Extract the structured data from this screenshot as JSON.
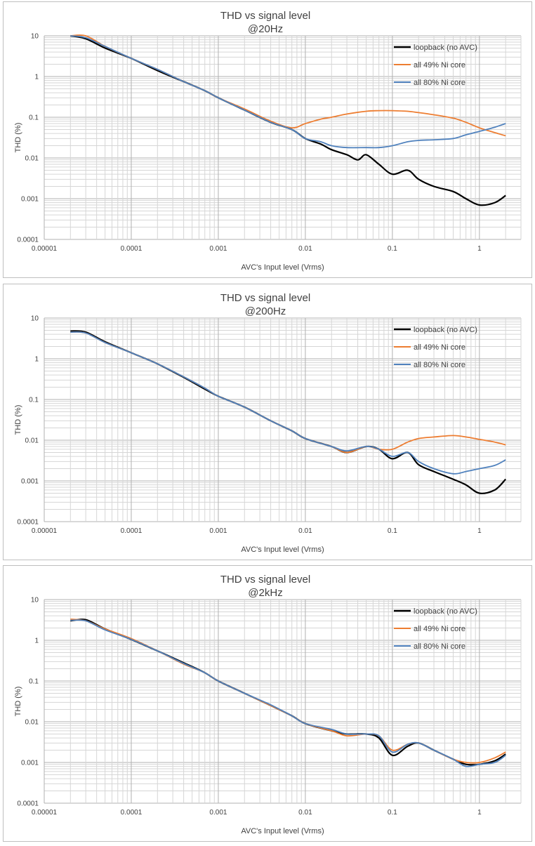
{
  "chart_data": [
    {
      "type": "line",
      "title": "THD vs signal level",
      "subtitle": "@20Hz",
      "xlabel": "AVC's Input level (Vrms)",
      "ylabel": "THD (%)",
      "xscale": "log",
      "yscale": "log",
      "xlim": [
        1e-05,
        3
      ],
      "ylim": [
        0.0001,
        10
      ],
      "xticks": [
        "0.00001",
        "0.0001",
        "0.001",
        "0.01",
        "0.1",
        "1"
      ],
      "yticks": [
        "0.0001",
        "0.001",
        "0.01",
        "0.1",
        "1",
        "10"
      ],
      "grid": true,
      "legend_position": "top-right",
      "series": [
        {
          "name": "loopback (no AVC)",
          "color": "#000000",
          "x": [
            2e-05,
            3e-05,
            5e-05,
            0.0001,
            0.0002,
            0.0004,
            0.0007,
            0.001,
            0.002,
            0.004,
            0.007,
            0.01,
            0.015,
            0.02,
            0.03,
            0.04,
            0.05,
            0.07,
            0.1,
            0.15,
            0.2,
            0.3,
            0.5,
            0.7,
            1,
            1.5,
            2
          ],
          "y": [
            10,
            8.5,
            5,
            2.8,
            1.4,
            0.75,
            0.45,
            0.3,
            0.15,
            0.075,
            0.05,
            0.03,
            0.022,
            0.016,
            0.012,
            0.009,
            0.012,
            0.007,
            0.004,
            0.005,
            0.003,
            0.002,
            0.0015,
            0.001,
            0.0007,
            0.0008,
            0.0012
          ]
        },
        {
          "name": "all 49% Ni core",
          "color": "#ed7d31",
          "x": [
            2e-05,
            3e-05,
            5e-05,
            0.0001,
            0.0002,
            0.0004,
            0.0007,
            0.001,
            0.002,
            0.004,
            0.007,
            0.01,
            0.015,
            0.02,
            0.03,
            0.05,
            0.07,
            0.1,
            0.15,
            0.2,
            0.3,
            0.5,
            0.7,
            1,
            1.5,
            2
          ],
          "y": [
            10,
            10,
            5.5,
            2.8,
            1.5,
            0.75,
            0.45,
            0.3,
            0.16,
            0.08,
            0.055,
            0.07,
            0.09,
            0.1,
            0.12,
            0.14,
            0.145,
            0.145,
            0.14,
            0.13,
            0.115,
            0.095,
            0.075,
            0.055,
            0.042,
            0.035
          ]
        },
        {
          "name": "all 80% Ni core",
          "color": "#4f81bd",
          "x": [
            2e-05,
            3e-05,
            5e-05,
            0.0001,
            0.0002,
            0.0004,
            0.0007,
            0.001,
            0.002,
            0.004,
            0.007,
            0.01,
            0.015,
            0.02,
            0.03,
            0.05,
            0.07,
            0.1,
            0.15,
            0.2,
            0.3,
            0.5,
            0.7,
            1,
            1.5,
            2
          ],
          "y": [
            10,
            9,
            5.5,
            2.8,
            1.5,
            0.75,
            0.45,
            0.3,
            0.15,
            0.075,
            0.05,
            0.03,
            0.025,
            0.02,
            0.018,
            0.018,
            0.018,
            0.02,
            0.025,
            0.027,
            0.028,
            0.03,
            0.037,
            0.045,
            0.057,
            0.07
          ]
        }
      ]
    },
    {
      "type": "line",
      "title": "THD vs signal level",
      "subtitle": "@200Hz",
      "xlabel": "AVC's Input level (Vrms)",
      "ylabel": "THD (%)",
      "xscale": "log",
      "yscale": "log",
      "xlim": [
        1e-05,
        3
      ],
      "ylim": [
        0.0001,
        10
      ],
      "xticks": [
        "0.00001",
        "0.0001",
        "0.001",
        "0.01",
        "0.1",
        "1"
      ],
      "yticks": [
        "0.0001",
        "0.001",
        "0.01",
        "0.1",
        "1",
        "10"
      ],
      "grid": true,
      "legend_position": "top-right",
      "series": [
        {
          "name": "loopback (no AVC)",
          "color": "#000000",
          "x": [
            2e-05,
            3e-05,
            5e-05,
            0.0001,
            0.0002,
            0.0004,
            0.0007,
            0.001,
            0.002,
            0.004,
            0.007,
            0.01,
            0.02,
            0.03,
            0.05,
            0.07,
            0.1,
            0.15,
            0.2,
            0.3,
            0.5,
            0.7,
            1,
            1.5,
            2
          ],
          "y": [
            4.8,
            4.5,
            2.6,
            1.4,
            0.75,
            0.35,
            0.18,
            0.12,
            0.065,
            0.03,
            0.017,
            0.011,
            0.007,
            0.005,
            0.007,
            0.006,
            0.0035,
            0.005,
            0.0025,
            0.0017,
            0.0011,
            0.0008,
            0.0005,
            0.0006,
            0.0011
          ]
        },
        {
          "name": "all 49% Ni core",
          "color": "#ed7d31",
          "x": [
            2e-05,
            3e-05,
            5e-05,
            0.0001,
            0.0002,
            0.0004,
            0.0007,
            0.001,
            0.002,
            0.004,
            0.007,
            0.01,
            0.02,
            0.03,
            0.05,
            0.07,
            0.1,
            0.15,
            0.2,
            0.3,
            0.5,
            0.7,
            1,
            1.5,
            2
          ],
          "y": [
            4.5,
            4.3,
            2.5,
            1.4,
            0.75,
            0.36,
            0.19,
            0.12,
            0.065,
            0.03,
            0.017,
            0.011,
            0.007,
            0.005,
            0.007,
            0.006,
            0.006,
            0.009,
            0.011,
            0.012,
            0.013,
            0.012,
            0.0105,
            0.009,
            0.0077
          ]
        },
        {
          "name": "all 80% Ni core",
          "color": "#4f81bd",
          "x": [
            2e-05,
            3e-05,
            5e-05,
            0.0001,
            0.0002,
            0.0004,
            0.0007,
            0.001,
            0.002,
            0.004,
            0.007,
            0.01,
            0.02,
            0.03,
            0.05,
            0.07,
            0.1,
            0.15,
            0.2,
            0.3,
            0.5,
            0.7,
            1,
            1.5,
            2
          ],
          "y": [
            4.5,
            4.3,
            2.5,
            1.4,
            0.75,
            0.36,
            0.19,
            0.12,
            0.065,
            0.03,
            0.017,
            0.011,
            0.007,
            0.0055,
            0.007,
            0.006,
            0.004,
            0.005,
            0.003,
            0.002,
            0.0015,
            0.0017,
            0.002,
            0.0024,
            0.0033
          ]
        }
      ]
    },
    {
      "type": "line",
      "title": "THD vs signal level",
      "subtitle": "@2kHz",
      "xlabel": "AVC's Input level (Vrms)",
      "ylabel": "THD (%)",
      "xscale": "log",
      "yscale": "log",
      "xlim": [
        1e-05,
        3
      ],
      "ylim": [
        0.0001,
        10
      ],
      "xticks": [
        "0.00001",
        "0.0001",
        "0.001",
        "0.01",
        "0.1",
        "1"
      ],
      "yticks": [
        "0.0001",
        "0.001",
        "0.01",
        "0.1",
        "1",
        "10"
      ],
      "grid": true,
      "legend_position": "top-right",
      "series": [
        {
          "name": "loopback (no AVC)",
          "color": "#000000",
          "x": [
            2e-05,
            3e-05,
            5e-05,
            0.0001,
            0.0002,
            0.0004,
            0.0007,
            0.001,
            0.002,
            0.004,
            0.007,
            0.01,
            0.02,
            0.03,
            0.05,
            0.07,
            0.1,
            0.15,
            0.2,
            0.3,
            0.5,
            0.7,
            1,
            1.5,
            2
          ],
          "y": [
            3,
            3.2,
            1.9,
            1.05,
            0.55,
            0.28,
            0.16,
            0.1,
            0.05,
            0.025,
            0.014,
            0.009,
            0.006,
            0.005,
            0.005,
            0.004,
            0.0015,
            0.0025,
            0.003,
            0.002,
            0.0012,
            0.0009,
            0.0009,
            0.0011,
            0.0016
          ]
        },
        {
          "name": "all 49% Ni core",
          "color": "#ed7d31",
          "x": [
            2e-05,
            3e-05,
            5e-05,
            0.0001,
            0.0002,
            0.0004,
            0.0007,
            0.001,
            0.002,
            0.004,
            0.007,
            0.01,
            0.02,
            0.03,
            0.05,
            0.07,
            0.1,
            0.15,
            0.2,
            0.3,
            0.5,
            0.7,
            1,
            1.5,
            2
          ],
          "y": [
            3.3,
            3,
            1.9,
            1.1,
            0.55,
            0.26,
            0.16,
            0.1,
            0.05,
            0.025,
            0.014,
            0.009,
            0.006,
            0.0045,
            0.005,
            0.0045,
            0.002,
            0.0028,
            0.003,
            0.002,
            0.0012,
            0.001,
            0.001,
            0.0013,
            0.0018
          ]
        },
        {
          "name": "all 80% Ni core",
          "color": "#4f81bd",
          "x": [
            2e-05,
            3e-05,
            5e-05,
            0.0001,
            0.0002,
            0.0004,
            0.0007,
            0.001,
            0.002,
            0.004,
            0.007,
            0.01,
            0.02,
            0.03,
            0.05,
            0.07,
            0.1,
            0.15,
            0.2,
            0.3,
            0.5,
            0.7,
            1,
            1.5,
            2
          ],
          "y": [
            3.1,
            3,
            1.8,
            1.05,
            0.55,
            0.27,
            0.16,
            0.1,
            0.05,
            0.026,
            0.014,
            0.009,
            0.0065,
            0.005,
            0.005,
            0.0045,
            0.0018,
            0.0028,
            0.003,
            0.002,
            0.0012,
            0.0008,
            0.0009,
            0.001,
            0.0015
          ]
        }
      ]
    }
  ]
}
